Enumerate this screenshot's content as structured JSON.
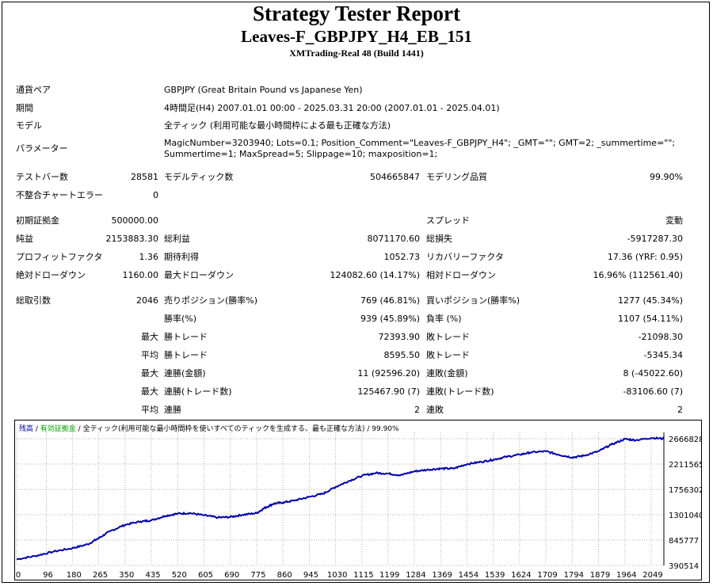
{
  "header": {
    "title": "Strategy Tester Report",
    "expert": "Leaves-F_GBPJPY_H4_EB_151",
    "server": "XMTrading-Real 48 (Build 1441)"
  },
  "settings": {
    "pair_label": "通貨ペア",
    "pair_value": "GBPJPY (Great Britain Pound vs Japanese Yen)",
    "period_label": "期間",
    "period_value": "4時間足(H4) 2007.01.01 00:00 - 2025.03.31 20:00 (2007.01.01 - 2025.04.01)",
    "model_label": "モデル",
    "model_value": "全ティック (利用可能な最小時間枠による最も正確な方法)",
    "params_label": "パラメーター",
    "params_line1": "MagicNumber=3203940; Lots=0.1; Position_Comment=\"Leaves-F_GBPJPY_H4\"; _GMT=\"\"; GMT=2; _summertime=\"\";",
    "params_line2": "Summertime=1; MaxSpread=5; Slippage=10; maxposition=1;"
  },
  "quality": {
    "bars_label": "テストバー数",
    "bars_value": "28581",
    "ticks_label": "モデルティック数",
    "ticks_value": "504665847",
    "modeling_label": "モデリング品質",
    "modeling_value": "99.90%",
    "mismatch_label": "不整合チャートエラー",
    "mismatch_value": "0"
  },
  "results": {
    "deposit_label": "初期証拠金",
    "deposit_value": "500000.00",
    "spread_label": "スプレッド",
    "spread_value": "変動",
    "net_label": "純益",
    "net_value": "2153883.30",
    "gross_profit_label": "総利益",
    "gross_profit_value": "8071170.60",
    "gross_loss_label": "総損失",
    "gross_loss_value": "-5917287.30",
    "pf_label": "プロフィットファクタ",
    "pf_value": "1.36",
    "expected_label": "期待利得",
    "expected_value": "1052.73",
    "recovery_label": "リカバリーファクタ",
    "recovery_value": "17.36 (YRF: 0.95)",
    "abs_dd_label": "絶対ドローダウン",
    "abs_dd_value": "1160.00",
    "max_dd_label": "最大ドローダウン",
    "max_dd_value": "124082.60 (14.17%)",
    "rel_dd_label": "相対ドローダウン",
    "rel_dd_value": "16.96% (112561.40)"
  },
  "trades": {
    "total_label": "総取引数",
    "total_value": "2046",
    "short_label": "売りポジション(勝率%)",
    "short_value": "769 (46.81%)",
    "long_label": "買いポジション(勝率%)",
    "long_value": "1277 (45.34%)",
    "winrate_label": "勝率(%)",
    "winrate_value": "939 (45.89%)",
    "lossrate_label": "負率 (%)",
    "lossrate_value": "1107 (54.11%)",
    "max_label": "最大",
    "avg_label": "平均",
    "largest_win_label": "勝トレード",
    "largest_win_value": "72393.90",
    "largest_loss_label": "敗トレード",
    "largest_loss_value": "-21098.30",
    "avg_win_label": "勝トレード",
    "avg_win_value": "8595.50",
    "avg_loss_label": "敗トレード",
    "avg_loss_value": "-5345.34",
    "cons_wins_amt_label": "連勝(金額)",
    "cons_wins_amt_value": "11 (92596.20)",
    "cons_loss_amt_label": "連敗(金額)",
    "cons_loss_amt_value": "8 (-45022.60)",
    "cons_wins_trd_label": "連勝(トレード数)",
    "cons_wins_trd_value": "125467.90 (7)",
    "cons_loss_trd_label": "連敗(トレード数)",
    "cons_loss_trd_value": "-83106.60 (7)",
    "avg_cons_win_label": "連勝",
    "avg_cons_win_value": "2",
    "avg_cons_loss_label": "連敗",
    "avg_cons_loss_value": "2"
  },
  "chart_legend": {
    "balance": "残高",
    "sep1": " / ",
    "effective": "有効証拠金",
    "sep2": " / ",
    "rest": "全ティック(利用可能な最小時間枠を使いすべてのティックを生成する、最も正確な方法) / 99.90%"
  },
  "colors": {
    "balance": "#0000AA",
    "effective": "#00A000",
    "grid": "#B0B0B0"
  },
  "chart_data": {
    "type": "line",
    "title": "",
    "xlabel": "",
    "ylabel": "",
    "x_ticks": [
      "0",
      "96",
      "180",
      "265",
      "350",
      "435",
      "520",
      "605",
      "690",
      "775",
      "860",
      "945",
      "1030",
      "1115",
      "1199",
      "1284",
      "1369",
      "1454",
      "1539",
      "1624",
      "1709",
      "1794",
      "1879",
      "1964",
      "2049"
    ],
    "y_ticks": [
      "2666828",
      "2211565",
      "1756302",
      "1301040",
      "845777",
      "390514"
    ],
    "xlim": [
      0,
      2090
    ],
    "ylim": [
      390514,
      2780000
    ],
    "grid": true,
    "series": [
      {
        "name": "残高",
        "x": [
          0,
          60,
          120,
          180,
          230,
          265,
          300,
          350,
          400,
          435,
          480,
          520,
          560,
          605,
          650,
          690,
          730,
          775,
          800,
          830,
          860,
          900,
          945,
          990,
          1030,
          1070,
          1115,
          1160,
          1199,
          1240,
          1284,
          1330,
          1369,
          1410,
          1454,
          1500,
          1539,
          1580,
          1624,
          1660,
          1709,
          1750,
          1794,
          1830,
          1879,
          1920,
          1964,
          2000,
          2049,
          2090
        ],
        "y": [
          500000,
          560000,
          640000,
          700000,
          770000,
          880000,
          1000000,
          1120000,
          1180000,
          1200000,
          1280000,
          1320000,
          1330000,
          1290000,
          1250000,
          1260000,
          1300000,
          1330000,
          1420000,
          1500000,
          1520000,
          1560000,
          1620000,
          1680000,
          1800000,
          1900000,
          2000000,
          2050000,
          2040000,
          2010000,
          2080000,
          2110000,
          2130000,
          2130000,
          2210000,
          2250000,
          2290000,
          2340000,
          2380000,
          2420000,
          2440000,
          2380000,
          2330000,
          2360000,
          2440000,
          2560000,
          2660000,
          2640000,
          2680000,
          2666828
        ]
      }
    ]
  }
}
